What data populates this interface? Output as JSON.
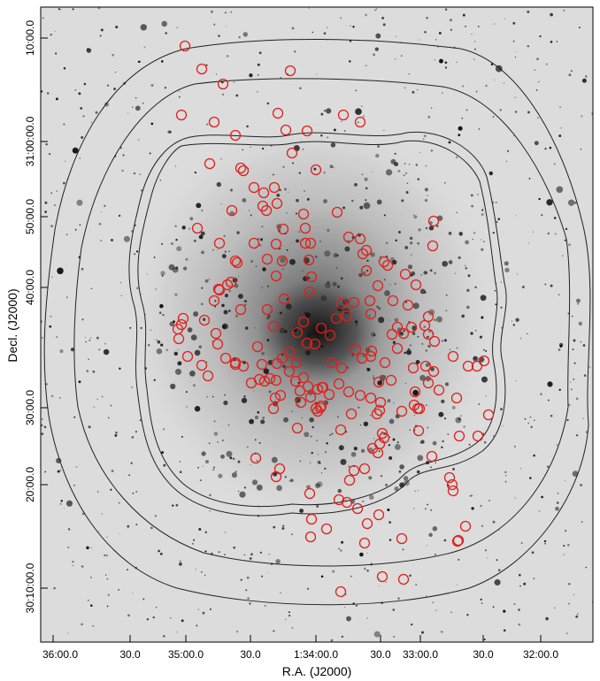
{
  "figure": {
    "xlabel": "R.A. (J2000)",
    "ylabel": "Decl. (J2000)",
    "x_ticks": [
      "36:00.0",
      "30.0",
      "35:00.0",
      "30.0",
      "1:34:00.0",
      "30.0",
      "33:00.0",
      "30.0",
      "32:00.0"
    ],
    "y_ticks": [
      "10:00.0",
      "31:00:00.0",
      "50:00.0",
      "40:00.0",
      "30:00.0",
      "20:00.0",
      "30:10:00.0"
    ],
    "colors": {
      "circles": "#e0201c",
      "contours": "#222222",
      "axis": "#000000"
    }
  }
}
